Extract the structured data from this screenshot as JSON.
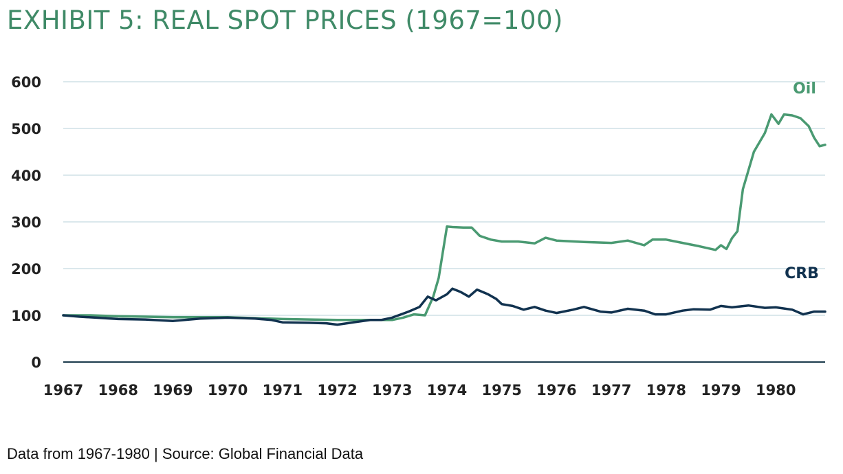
{
  "colors": {
    "title": "#3f8a67",
    "oil": "#4a9a72",
    "crb": "#11324f",
    "grid": "#cfe0e6",
    "axis": "#1b3a4b"
  },
  "chart_data": {
    "type": "line",
    "title": "EXHIBIT 5: REAL SPOT PRICES (1967=100)",
    "xlabel": "",
    "ylabel": "",
    "xlim": [
      1967,
      1980.9
    ],
    "ylim": [
      0,
      600
    ],
    "x_ticks": [
      "1967",
      "1968",
      "1969",
      "1970",
      "1971",
      "1972",
      "1973",
      "1974",
      "1975",
      "1976",
      "1977",
      "1978",
      "1979",
      "1980"
    ],
    "y_ticks": [
      "0",
      "100",
      "200",
      "300",
      "400",
      "500",
      "600"
    ],
    "grid": true,
    "legend": "inline labels at right end of series",
    "series": [
      {
        "name": "Oil",
        "x": [
          1967.0,
          1967.5,
          1968.0,
          1968.5,
          1969.0,
          1969.5,
          1970.0,
          1970.5,
          1971.0,
          1971.5,
          1972.0,
          1972.5,
          1973.0,
          1973.2,
          1973.4,
          1973.6,
          1973.75,
          1973.85,
          1974.0,
          1974.1,
          1974.3,
          1974.45,
          1974.6,
          1974.8,
          1975.0,
          1975.3,
          1975.6,
          1975.8,
          1976.0,
          1976.5,
          1977.0,
          1977.3,
          1977.6,
          1977.75,
          1978.0,
          1978.3,
          1978.6,
          1978.9,
          1979.0,
          1979.1,
          1979.2,
          1979.3,
          1979.4,
          1979.6,
          1979.8,
          1979.92,
          1980.05,
          1980.15,
          1980.3,
          1980.45,
          1980.6,
          1980.7,
          1980.8,
          1980.9
        ],
        "values": [
          100,
          100,
          98,
          97,
          96,
          96,
          96,
          94,
          92,
          91,
          90,
          90,
          90,
          95,
          102,
          100,
          140,
          180,
          290,
          289,
          288,
          288,
          270,
          262,
          258,
          258,
          254,
          266,
          260,
          257,
          255,
          260,
          250,
          262,
          262,
          255,
          248,
          240,
          250,
          242,
          265,
          280,
          370,
          450,
          490,
          530,
          510,
          530,
          528,
          522,
          505,
          480,
          462,
          465
        ]
      },
      {
        "name": "CRB",
        "x": [
          1967.0,
          1967.3,
          1967.6,
          1968.0,
          1968.5,
          1969.0,
          1969.5,
          1970.0,
          1970.5,
          1970.8,
          1971.0,
          1971.5,
          1971.8,
          1972.0,
          1972.3,
          1972.6,
          1972.8,
          1973.0,
          1973.3,
          1973.5,
          1973.65,
          1973.8,
          1974.0,
          1974.1,
          1974.25,
          1974.4,
          1974.55,
          1974.75,
          1974.9,
          1975.0,
          1975.2,
          1975.4,
          1975.6,
          1975.8,
          1976.0,
          1976.3,
          1976.5,
          1976.8,
          1977.0,
          1977.3,
          1977.6,
          1977.8,
          1978.0,
          1978.3,
          1978.5,
          1978.8,
          1979.0,
          1979.2,
          1979.5,
          1979.8,
          1980.0,
          1980.3,
          1980.5,
          1980.7,
          1980.9
        ],
        "values": [
          100,
          97,
          95,
          92,
          91,
          88,
          93,
          95,
          93,
          90,
          85,
          84,
          83,
          80,
          85,
          90,
          90,
          95,
          108,
          118,
          140,
          132,
          145,
          157,
          150,
          140,
          155,
          145,
          135,
          124,
          120,
          112,
          118,
          110,
          105,
          112,
          118,
          108,
          106,
          114,
          110,
          102,
          102,
          110,
          113,
          112,
          120,
          117,
          121,
          116,
          117,
          112,
          102,
          108,
          108
        ]
      }
    ]
  },
  "footer": {
    "text": "Data from 1967-1980 | Source: Global Financial Data"
  }
}
